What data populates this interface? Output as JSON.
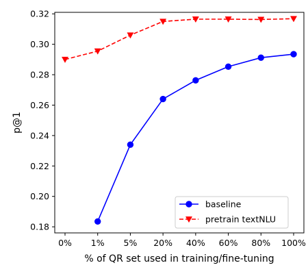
{
  "chart_data": {
    "type": "line",
    "title": "",
    "xlabel": "% of QR set used in training/fine-tuning",
    "ylabel": "p@1",
    "categories": [
      "0%",
      "1%",
      "5%",
      "20%",
      "40%",
      "60%",
      "80%",
      "100%"
    ],
    "ylim": [
      0.176,
      0.321
    ],
    "yticks": [
      "0.18",
      "0.20",
      "0.22",
      "0.24",
      "0.26",
      "0.28",
      "0.30",
      "0.32"
    ],
    "grid": false,
    "legend_position": "bottom-right",
    "series": [
      {
        "name": "baseline",
        "color": "#0000ff",
        "marker": "circle",
        "linestyle": "solid",
        "values": [
          null,
          0.1835,
          0.234,
          0.264,
          0.2763,
          0.2853,
          0.2912,
          0.2935
        ]
      },
      {
        "name": "pretrain textNLU",
        "color": "#ff0000",
        "marker": "triangle-down",
        "linestyle": "dashed",
        "values": [
          0.29,
          0.2955,
          0.306,
          0.315,
          0.3165,
          0.3165,
          0.3163,
          0.3168
        ]
      }
    ]
  }
}
